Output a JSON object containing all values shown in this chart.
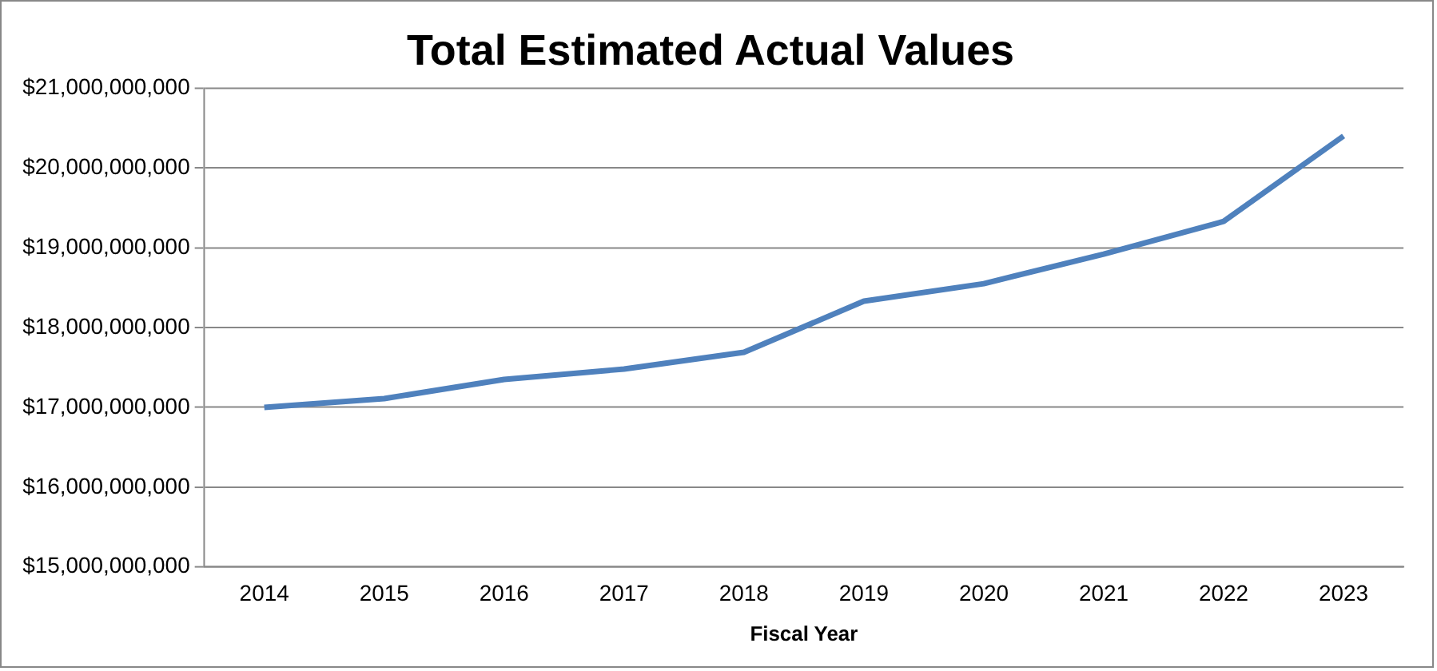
{
  "chart_data": {
    "type": "line",
    "title": "Total Estimated Actual Values",
    "xlabel": "Fiscal Year",
    "categories": [
      "2014",
      "2015",
      "2016",
      "2017",
      "2018",
      "2019",
      "2020",
      "2021",
      "2022",
      "2023"
    ],
    "series": [
      {
        "color": "#4f81bd",
        "values": [
          17000000000,
          17110000000,
          17350000000,
          17480000000,
          17690000000,
          18330000000,
          18550000000,
          18920000000,
          19330000000,
          20400000000
        ]
      }
    ],
    "ylim": [
      15000000000,
      21000000000
    ],
    "yticks": [
      {
        "value": 15000000000,
        "label": "$15,000,000,000"
      },
      {
        "value": 16000000000,
        "label": "$16,000,000,000"
      },
      {
        "value": 17000000000,
        "label": "$17,000,000,000"
      },
      {
        "value": 18000000000,
        "label": "$18,000,000,000"
      },
      {
        "value": 19000000000,
        "label": "$19,000,000,000"
      },
      {
        "value": 20000000000,
        "label": "$20,000,000,000"
      },
      {
        "value": 21000000000,
        "label": "$21,000,000,000"
      }
    ],
    "grid": "y",
    "legend": false,
    "marker": "none",
    "line_style": "solid"
  }
}
